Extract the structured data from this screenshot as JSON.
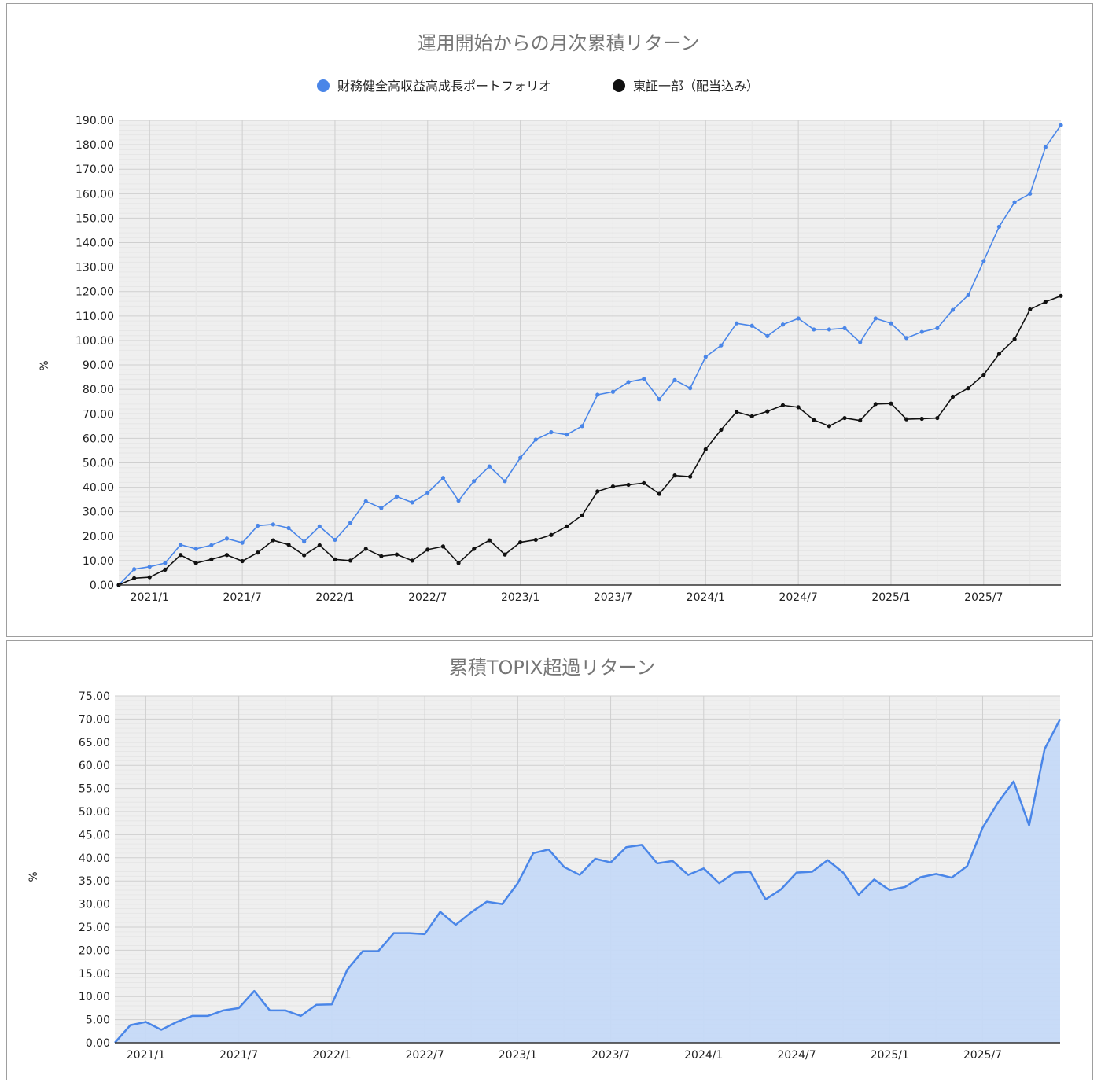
{
  "colors": {
    "portfolio": "#4a86e8",
    "topix": "#111111",
    "area_fill": "#c5d9f7",
    "area_line": "#4a86e8",
    "grid_major": "#cfcfcf",
    "grid_minor": "#e6e6e6",
    "plot_bg": "#efefef"
  },
  "chart_data": [
    {
      "type": "line",
      "title": "運用開始からの月次累積リターン",
      "ylabel": "%",
      "ylim": [
        0,
        190
      ],
      "yticks": [
        "0.00",
        "10.00",
        "20.00",
        "30.00",
        "40.00",
        "50.00",
        "60.00",
        "70.00",
        "80.00",
        "90.00",
        "100.00",
        "110.00",
        "120.00",
        "130.00",
        "140.00",
        "150.00",
        "160.00",
        "170.00",
        "180.00",
        "190.00"
      ],
      "xticks": [
        "2021/1",
        "2021/7",
        "2022/1",
        "2022/7",
        "2023/1",
        "2023/7",
        "2024/1",
        "2024/7",
        "2025/1",
        "2025/7"
      ],
      "legend_position": "top",
      "series": [
        {
          "name": "財務健全高収益高成長ポートフォリオ",
          "values": [
            0,
            6.5,
            7.5,
            9,
            16.5,
            14.8,
            16.3,
            19,
            17.3,
            24.3,
            24.8,
            23.3,
            17.8,
            24,
            18.5,
            25.5,
            34.3,
            31.5,
            36.2,
            33.8,
            37.8,
            43.8,
            34.5,
            42.5,
            48.5,
            42.5,
            52,
            59.5,
            62.5,
            61.5,
            65,
            77.8,
            79,
            83,
            84.3,
            76,
            83.8,
            80.5,
            93.3,
            98,
            107,
            106,
            101.8,
            106.5,
            109,
            104.5,
            104.5,
            105,
            99.3,
            109,
            107,
            101,
            103.5,
            105,
            112.5,
            118.5,
            132.5,
            146.5,
            156.5,
            160,
            179,
            188
          ]
        },
        {
          "name": "東証一部（配当込み）",
          "values": [
            0,
            2.8,
            3.2,
            6.3,
            12.3,
            9,
            10.5,
            12.3,
            9.8,
            13.3,
            18.3,
            16.5,
            12.2,
            16.3,
            10.5,
            10,
            14.8,
            11.8,
            12.5,
            10,
            14.5,
            15.8,
            9,
            14.8,
            18.3,
            12.5,
            17.5,
            18.5,
            20.5,
            24,
            28.5,
            38.3,
            40.3,
            41,
            41.7,
            37.3,
            44.8,
            44.3,
            55.5,
            63.5,
            70.8,
            69,
            71,
            73.5,
            72.7,
            67.5,
            65,
            68.3,
            67.3,
            74,
            74.2,
            67.8,
            68,
            68.3,
            77,
            80.5,
            86,
            94.5,
            100.5,
            112.7,
            115.8,
            118.2
          ]
        }
      ]
    },
    {
      "type": "area",
      "title": "累積TOPIX超過リターン",
      "ylabel": "%",
      "ylim": [
        0,
        75
      ],
      "yticks": [
        "0.00",
        "5.00",
        "10.00",
        "15.00",
        "20.00",
        "25.00",
        "30.00",
        "35.00",
        "40.00",
        "45.00",
        "50.00",
        "55.00",
        "60.00",
        "65.00",
        "70.00",
        "75.00"
      ],
      "xticks": [
        "2021/1",
        "2021/7",
        "2022/1",
        "2022/7",
        "2023/1",
        "2023/7",
        "2024/1",
        "2024/7",
        "2025/1",
        "2025/7"
      ],
      "series": [
        {
          "values": [
            0,
            3.8,
            4.5,
            2.8,
            4.5,
            5.8,
            5.8,
            7,
            7.5,
            11.2,
            7,
            7,
            5.8,
            8.2,
            8.3,
            15.8,
            19.8,
            19.8,
            23.7,
            23.7,
            23.5,
            28.3,
            25.5,
            28.2,
            30.5,
            30,
            34.5,
            41,
            41.8,
            38,
            36.3,
            39.8,
            39,
            42.3,
            42.8,
            38.8,
            39.3,
            36.3,
            37.7,
            34.5,
            36.8,
            37,
            31,
            33.2,
            36.8,
            37,
            39.5,
            36.8,
            32,
            35.3,
            33,
            33.7,
            35.8,
            36.5,
            35.7,
            38.2,
            46.5,
            52,
            56.5,
            47,
            63.5,
            70
          ]
        }
      ]
    }
  ]
}
